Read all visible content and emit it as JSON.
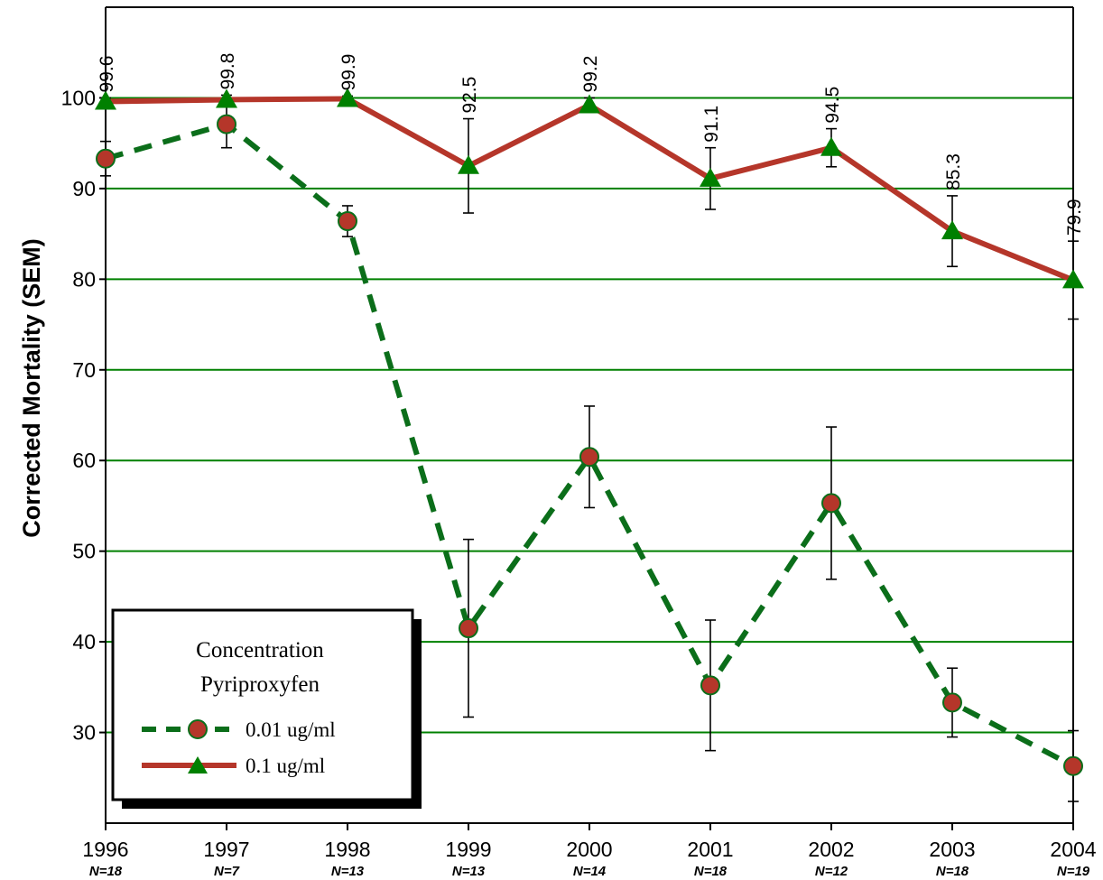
{
  "chart_data": {
    "type": "line",
    "ylabel": "Corrected Mortality  (SEM)",
    "xlabel": "",
    "x": [
      "1996",
      "1997",
      "1998",
      "1999",
      "2000",
      "2001",
      "2002",
      "2003",
      "2004"
    ],
    "sample_sizes": [
      "N=18",
      "N=7",
      "N=13",
      "N=13",
      "N=14",
      "N=18",
      "N=12",
      "N=18",
      "N=19"
    ],
    "y_ticks": [
      "30",
      "40",
      "50",
      "60",
      "70",
      "80",
      "90",
      "100"
    ],
    "y_tick_values": [
      30,
      40,
      50,
      60,
      70,
      80,
      90,
      100
    ],
    "ylim": [
      20,
      110
    ],
    "grid": true,
    "colors": {
      "grid": "#008000",
      "red": "#b5362a",
      "green": "#0b6e1a",
      "marker_green": "#008000"
    },
    "legend": {
      "title_line1": "Concentration",
      "title_line2": "Pyriproxyfen",
      "placement": "bottom-left"
    },
    "series": [
      {
        "name": "0.01 ug/ml",
        "style": "dashed-green-circle",
        "values": [
          93.3,
          97.1,
          86.4,
          41.5,
          60.4,
          35.2,
          55.3,
          33.3,
          26.3
        ],
        "error": [
          1.9,
          2.6,
          1.7,
          9.8,
          5.6,
          7.2,
          8.4,
          3.8,
          3.9
        ]
      },
      {
        "name": "0.1 ug/ml",
        "style": "solid-red-triangle",
        "values": [
          99.6,
          99.8,
          99.9,
          92.5,
          99.2,
          91.1,
          94.5,
          85.3,
          79.9
        ],
        "labels": [
          "99.6",
          "99.8",
          "99.9",
          "92.5",
          "99.2",
          "91.1",
          "94.5",
          "85.3",
          "79.9"
        ],
        "error": [
          0.4,
          0.5,
          0.3,
          5.2,
          0.8,
          3.4,
          2.1,
          3.9,
          4.3
        ]
      }
    ]
  }
}
